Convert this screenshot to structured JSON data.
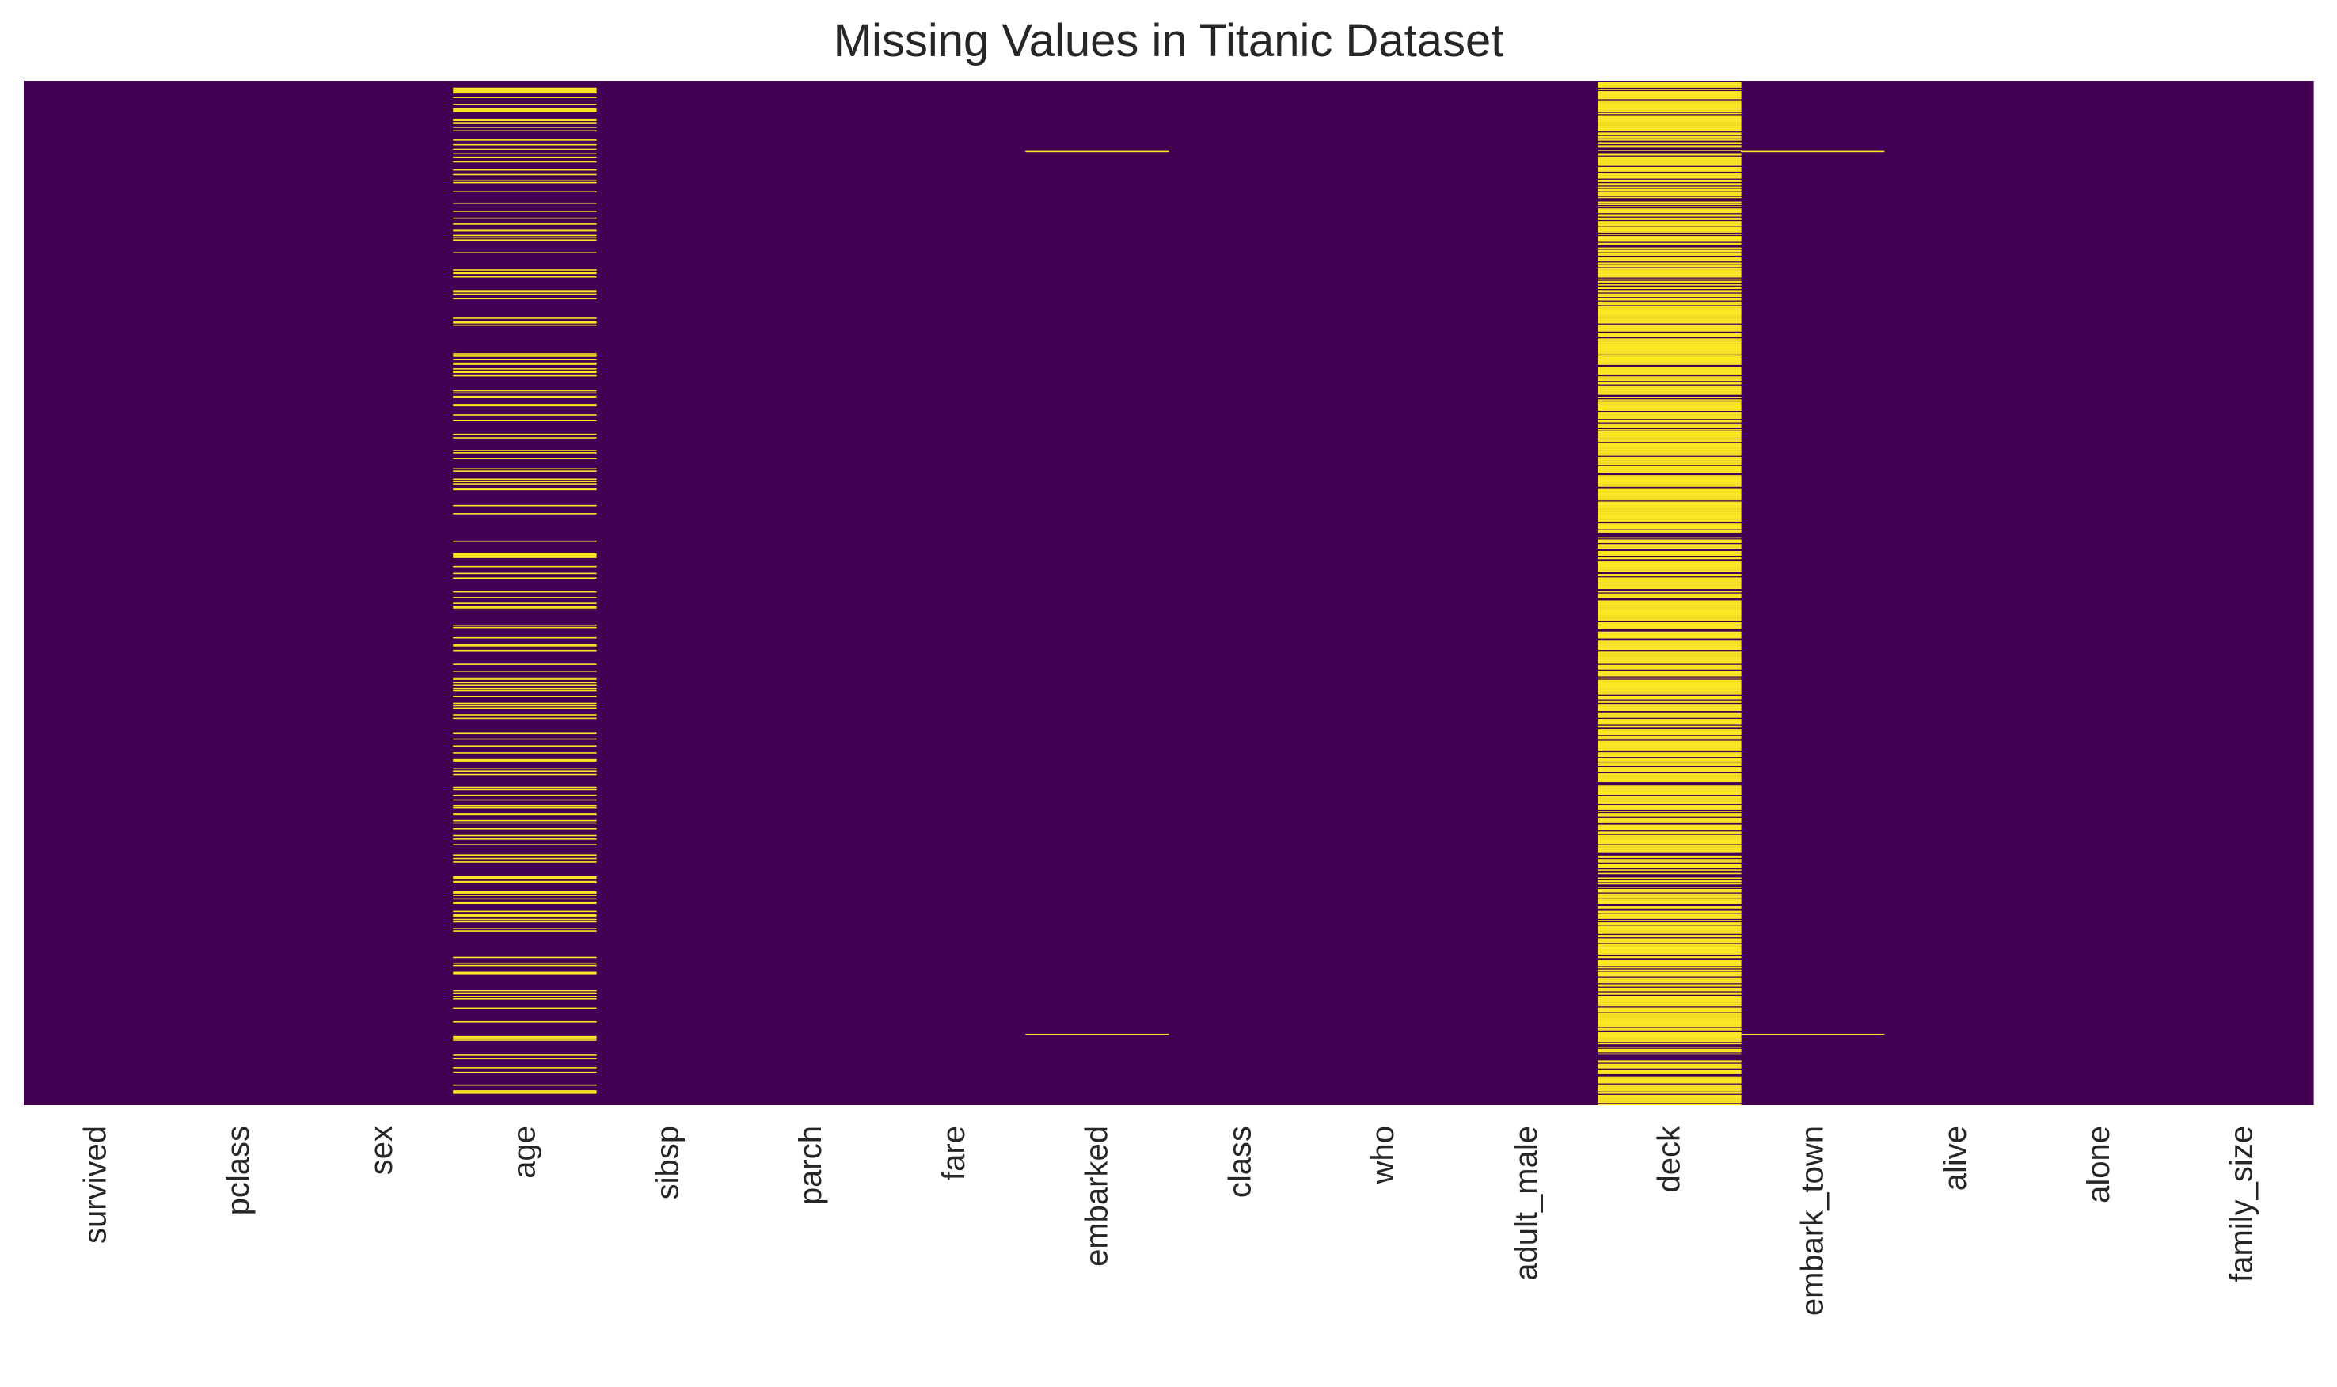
{
  "chart_data": {
    "type": "heatmap",
    "title": "Missing Values in Titanic Dataset",
    "xlabel": "",
    "ylabel": "",
    "n_rows": 891,
    "colormap": "viridis",
    "colors": {
      "present": "#440154",
      "missing": "#fde725"
    },
    "columns": [
      {
        "name": "survived",
        "missing_count": 0
      },
      {
        "name": "pclass",
        "missing_count": 0
      },
      {
        "name": "sex",
        "missing_count": 0
      },
      {
        "name": "age",
        "missing_count": 177
      },
      {
        "name": "sibsp",
        "missing_count": 0
      },
      {
        "name": "parch",
        "missing_count": 0
      },
      {
        "name": "fare",
        "missing_count": 0
      },
      {
        "name": "embarked",
        "missing_count": 2,
        "missing_rows": [
          61,
          829
        ]
      },
      {
        "name": "class",
        "missing_count": 0
      },
      {
        "name": "who",
        "missing_count": 0
      },
      {
        "name": "adult_male",
        "missing_count": 0
      },
      {
        "name": "deck",
        "missing_count": 688
      },
      {
        "name": "embark_town",
        "missing_count": 2,
        "missing_rows": [
          61,
          829
        ]
      },
      {
        "name": "alive",
        "missing_count": 0
      },
      {
        "name": "alone",
        "missing_count": 0
      },
      {
        "name": "family_size",
        "missing_count": 0
      }
    ]
  }
}
